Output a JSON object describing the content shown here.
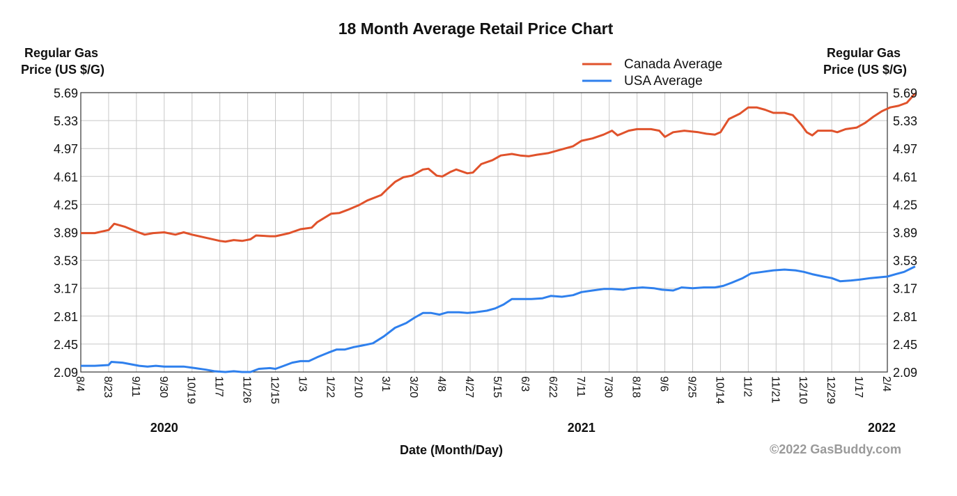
{
  "chart_data": {
    "type": "line",
    "title": "18 Month Average Retail Price Chart",
    "ylabel_left": [
      "Regular Gas",
      "Price (US $/G)"
    ],
    "ylabel_right": [
      "Regular Gas",
      "Price (US $/G)"
    ],
    "xlabel": "Date (Month/Day)",
    "ylim": [
      2.09,
      5.69
    ],
    "yticks": [
      "5.69",
      "5.33",
      "4.97",
      "4.61",
      "4.25",
      "3.89",
      "3.53",
      "3.17",
      "2.81",
      "2.45",
      "2.09"
    ],
    "xticks": [
      "8/4",
      "8/23",
      "9/11",
      "9/30",
      "10/19",
      "11/7",
      "11/26",
      "12/15",
      "1/3",
      "1/22",
      "2/10",
      "3/1",
      "3/20",
      "4/8",
      "4/27",
      "5/15",
      "6/3",
      "6/22",
      "7/11",
      "7/30",
      "8/18",
      "9/6",
      "9/25",
      "10/14",
      "11/2",
      "11/21",
      "12/10",
      "12/29",
      "1/17",
      "2/4"
    ],
    "years": [
      {
        "label": "2020",
        "at_tick": 3
      },
      {
        "label": "2021",
        "at_tick": 18
      },
      {
        "label": "2022",
        "at_tick": 29
      }
    ],
    "grid": true,
    "legend_position": "top-right",
    "credit": "©2022 GasBuddy.com",
    "series": [
      {
        "name": "Canada Average",
        "color": "#e0522b",
        "points": [
          [
            0,
            3.88
          ],
          [
            0.5,
            3.88
          ],
          [
            1,
            3.92
          ],
          [
            1.2,
            4.0
          ],
          [
            1.6,
            3.96
          ],
          [
            2.0,
            3.9
          ],
          [
            2.3,
            3.86
          ],
          [
            2.6,
            3.88
          ],
          [
            3.0,
            3.89
          ],
          [
            3.4,
            3.86
          ],
          [
            3.7,
            3.89
          ],
          [
            4.0,
            3.86
          ],
          [
            4.5,
            3.82
          ],
          [
            5.0,
            3.78
          ],
          [
            5.2,
            3.77
          ],
          [
            5.5,
            3.79
          ],
          [
            5.8,
            3.78
          ],
          [
            6.1,
            3.8
          ],
          [
            6.3,
            3.85
          ],
          [
            6.8,
            3.84
          ],
          [
            7.0,
            3.84
          ],
          [
            7.5,
            3.88
          ],
          [
            7.9,
            3.93
          ],
          [
            8.3,
            3.95
          ],
          [
            8.5,
            4.02
          ],
          [
            9.0,
            4.13
          ],
          [
            9.3,
            4.14
          ],
          [
            9.6,
            4.18
          ],
          [
            10.0,
            4.24
          ],
          [
            10.3,
            4.3
          ],
          [
            10.8,
            4.37
          ],
          [
            11.0,
            4.44
          ],
          [
            11.3,
            4.54
          ],
          [
            11.6,
            4.6
          ],
          [
            11.9,
            4.62
          ],
          [
            12.3,
            4.7
          ],
          [
            12.5,
            4.71
          ],
          [
            12.8,
            4.62
          ],
          [
            13.0,
            4.61
          ],
          [
            13.3,
            4.67
          ],
          [
            13.5,
            4.7
          ],
          [
            13.9,
            4.65
          ],
          [
            14.1,
            4.66
          ],
          [
            14.4,
            4.77
          ],
          [
            14.8,
            4.82
          ],
          [
            15.1,
            4.88
          ],
          [
            15.5,
            4.9
          ],
          [
            15.8,
            4.88
          ],
          [
            16.1,
            4.87
          ],
          [
            16.4,
            4.89
          ],
          [
            16.8,
            4.91
          ],
          [
            17.2,
            4.95
          ],
          [
            17.7,
            5.0
          ],
          [
            18.0,
            5.07
          ],
          [
            18.4,
            5.1
          ],
          [
            18.8,
            5.15
          ],
          [
            19.1,
            5.2
          ],
          [
            19.3,
            5.14
          ],
          [
            19.7,
            5.2
          ],
          [
            20.0,
            5.22
          ],
          [
            20.5,
            5.22
          ],
          [
            20.8,
            5.2
          ],
          [
            21.0,
            5.12
          ],
          [
            21.3,
            5.18
          ],
          [
            21.7,
            5.2
          ],
          [
            22.2,
            5.18
          ],
          [
            22.5,
            5.16
          ],
          [
            22.8,
            5.15
          ],
          [
            23.0,
            5.18
          ],
          [
            23.3,
            5.35
          ],
          [
            23.7,
            5.42
          ],
          [
            24.0,
            5.5
          ],
          [
            24.3,
            5.5
          ],
          [
            24.6,
            5.47
          ],
          [
            24.9,
            5.43
          ],
          [
            25.3,
            5.43
          ],
          [
            25.6,
            5.4
          ],
          [
            25.9,
            5.28
          ],
          [
            26.1,
            5.18
          ],
          [
            26.3,
            5.14
          ],
          [
            26.5,
            5.2
          ],
          [
            27.0,
            5.2
          ],
          [
            27.2,
            5.18
          ],
          [
            27.5,
            5.22
          ],
          [
            27.9,
            5.24
          ],
          [
            28.2,
            5.3
          ],
          [
            28.5,
            5.38
          ],
          [
            28.8,
            5.45
          ],
          [
            29.1,
            5.5
          ],
          [
            29.4,
            5.52
          ],
          [
            29.7,
            5.56
          ],
          [
            30.0,
            5.68
          ]
        ]
      },
      {
        "name": "USA Average",
        "color": "#2f80ed",
        "points": [
          [
            0,
            2.17
          ],
          [
            0.5,
            2.17
          ],
          [
            1,
            2.18
          ],
          [
            1.1,
            2.22
          ],
          [
            1.5,
            2.21
          ],
          [
            1.8,
            2.19
          ],
          [
            2.1,
            2.17
          ],
          [
            2.4,
            2.16
          ],
          [
            2.7,
            2.17
          ],
          [
            3.0,
            2.16
          ],
          [
            3.3,
            2.16
          ],
          [
            3.7,
            2.16
          ],
          [
            4.1,
            2.14
          ],
          [
            4.5,
            2.12
          ],
          [
            4.8,
            2.1
          ],
          [
            5.2,
            2.09
          ],
          [
            5.5,
            2.1
          ],
          [
            5.8,
            2.09
          ],
          [
            6.1,
            2.09
          ],
          [
            6.4,
            2.13
          ],
          [
            6.8,
            2.14
          ],
          [
            7.0,
            2.13
          ],
          [
            7.3,
            2.17
          ],
          [
            7.6,
            2.21
          ],
          [
            7.9,
            2.23
          ],
          [
            8.2,
            2.23
          ],
          [
            8.5,
            2.28
          ],
          [
            8.9,
            2.34
          ],
          [
            9.2,
            2.38
          ],
          [
            9.5,
            2.38
          ],
          [
            9.8,
            2.41
          ],
          [
            10.1,
            2.43
          ],
          [
            10.5,
            2.46
          ],
          [
            10.9,
            2.55
          ],
          [
            11.3,
            2.66
          ],
          [
            11.7,
            2.72
          ],
          [
            12.0,
            2.79
          ],
          [
            12.3,
            2.85
          ],
          [
            12.6,
            2.85
          ],
          [
            12.9,
            2.83
          ],
          [
            13.2,
            2.86
          ],
          [
            13.6,
            2.86
          ],
          [
            13.9,
            2.85
          ],
          [
            14.2,
            2.86
          ],
          [
            14.6,
            2.88
          ],
          [
            14.9,
            2.91
          ],
          [
            15.2,
            2.96
          ],
          [
            15.5,
            3.03
          ],
          [
            15.9,
            3.03
          ],
          [
            16.2,
            3.03
          ],
          [
            16.6,
            3.04
          ],
          [
            16.9,
            3.07
          ],
          [
            17.3,
            3.06
          ],
          [
            17.7,
            3.08
          ],
          [
            18.0,
            3.12
          ],
          [
            18.4,
            3.14
          ],
          [
            18.8,
            3.16
          ],
          [
            19.1,
            3.16
          ],
          [
            19.5,
            3.15
          ],
          [
            19.8,
            3.17
          ],
          [
            20.2,
            3.18
          ],
          [
            20.6,
            3.17
          ],
          [
            20.9,
            3.15
          ],
          [
            21.3,
            3.14
          ],
          [
            21.6,
            3.18
          ],
          [
            22.0,
            3.17
          ],
          [
            22.4,
            3.18
          ],
          [
            22.8,
            3.18
          ],
          [
            23.1,
            3.2
          ],
          [
            23.4,
            3.24
          ],
          [
            23.8,
            3.3
          ],
          [
            24.1,
            3.36
          ],
          [
            24.5,
            3.38
          ],
          [
            24.9,
            3.4
          ],
          [
            25.3,
            3.41
          ],
          [
            25.7,
            3.4
          ],
          [
            26.0,
            3.38
          ],
          [
            26.3,
            3.35
          ],
          [
            26.7,
            3.32
          ],
          [
            27.0,
            3.3
          ],
          [
            27.3,
            3.26
          ],
          [
            27.7,
            3.27
          ],
          [
            28.0,
            3.28
          ],
          [
            28.4,
            3.3
          ],
          [
            28.7,
            3.31
          ],
          [
            29.0,
            3.32
          ],
          [
            29.3,
            3.35
          ],
          [
            29.6,
            3.38
          ],
          [
            30.0,
            3.45
          ]
        ]
      }
    ]
  }
}
